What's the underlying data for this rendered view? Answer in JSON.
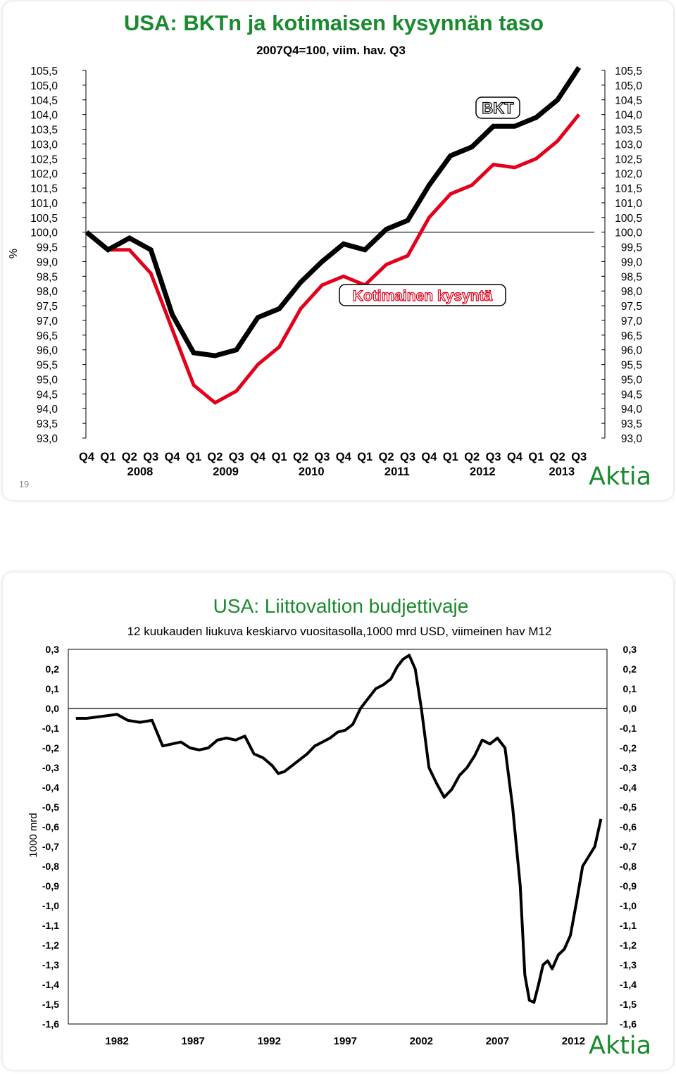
{
  "chart_data": [
    {
      "type": "line",
      "title": "USA: BKTn ja kotimaisen kysynnän taso",
      "subtitle": "2007Q4=100, viim. hav. Q3",
      "ylabel": "%",
      "ylim": [
        93.0,
        105.5
      ],
      "y_ticks": [
        "105,5",
        "105,0",
        "104,5",
        "104,0",
        "103,5",
        "103,0",
        "102,5",
        "102,0",
        "101,5",
        "101,0",
        "100,5",
        "100,0",
        "99,5",
        "99,0",
        "98,5",
        "98,0",
        "97,5",
        "97,0",
        "96,5",
        "96,0",
        "95,5",
        "95,0",
        "94,5",
        "94,0",
        "93,5",
        "93,0"
      ],
      "categories": [
        "Q4",
        "Q1",
        "Q2",
        "Q3",
        "Q4",
        "Q1",
        "Q2",
        "Q3",
        "Q4",
        "Q1",
        "Q2",
        "Q3",
        "Q4",
        "Q1",
        "Q2",
        "Q3",
        "Q4",
        "Q1",
        "Q2",
        "Q3",
        "Q4",
        "Q1",
        "Q2",
        "Q3"
      ],
      "year_labels": [
        {
          "label": "2008",
          "index": 2.5
        },
        {
          "label": "2009",
          "index": 6.5
        },
        {
          "label": "2010",
          "index": 10.5
        },
        {
          "label": "2011",
          "index": 14.5
        },
        {
          "label": "2012",
          "index": 18.5
        },
        {
          "label": "2013",
          "index": 22.2
        }
      ],
      "reference_line": 100.0,
      "series": [
        {
          "name": "BKT",
          "color": "#000000",
          "values": [
            100.0,
            99.4,
            99.8,
            99.4,
            97.2,
            95.9,
            95.8,
            96.0,
            97.1,
            97.4,
            98.3,
            99.0,
            99.6,
            99.4,
            100.1,
            100.4,
            101.6,
            102.6,
            102.9,
            103.6,
            103.6,
            103.9,
            104.5,
            105.6
          ]
        },
        {
          "name": "Kotimainen kysyntä",
          "color": "#e3001b",
          "values": [
            100.0,
            99.4,
            99.4,
            98.6,
            96.7,
            94.8,
            94.2,
            94.6,
            95.5,
            96.1,
            97.4,
            98.2,
            98.5,
            98.2,
            98.9,
            99.2,
            100.5,
            101.3,
            101.6,
            102.3,
            102.2,
            102.5,
            103.1,
            104.0
          ]
        }
      ],
      "page_number": "19",
      "logo": "Aktia"
    },
    {
      "type": "line",
      "title": "USA: Liittovaltion budjettivaje",
      "subtitle": "12 kuukauden liukuva keskiarvo vuositasolla,1000 mrd USD, viimeinen hav M12",
      "ylabel": "1000 mrd",
      "ylim": [
        -1.6,
        0.3
      ],
      "y_ticks": [
        "0,3",
        "0,2",
        "0,1",
        "0,0",
        "-0,1",
        "-0,2",
        "-0,3",
        "-0,4",
        "-0,5",
        "-0,6",
        "-0,7",
        "-0,8",
        "-0,9",
        "-1,0",
        "-1,1",
        "-1,2",
        "-1,3",
        "-1,4",
        "-1,5",
        "-1,6"
      ],
      "xlim": [
        1978.8,
        2014.2
      ],
      "x_ticks": [
        "1982",
        "1987",
        "1992",
        "1997",
        "2002",
        "2007",
        "2012"
      ],
      "reference_line": 0.0,
      "series": [
        {
          "name": "",
          "color": "#000000",
          "x": [
            1979.3,
            1980.0,
            1981.0,
            1982.0,
            1982.7,
            1983.5,
            1984.3,
            1985.0,
            1985.6,
            1986.2,
            1986.8,
            1987.4,
            1988.0,
            1988.6,
            1989.2,
            1989.8,
            1990.4,
            1991.0,
            1991.6,
            1992.2,
            1992.6,
            1993.0,
            1993.5,
            1994.0,
            1994.5,
            1995.0,
            1995.5,
            1996.0,
            1996.5,
            1997.0,
            1997.5,
            1998.0,
            1998.5,
            1999.0,
            1999.5,
            2000.0,
            2000.4,
            2000.8,
            2001.2,
            2001.6,
            2002.0,
            2002.5,
            2003.0,
            2003.5,
            2004.0,
            2004.5,
            2005.0,
            2005.5,
            2006.0,
            2006.5,
            2007.0,
            2007.5,
            2008.0,
            2008.5,
            2008.8,
            2009.1,
            2009.4,
            2009.7,
            2010.0,
            2010.3,
            2010.6,
            2011.0,
            2011.4,
            2011.8,
            2012.2,
            2012.6,
            2013.0,
            2013.4,
            2013.8
          ],
          "values": [
            -0.05,
            -0.05,
            -0.04,
            -0.03,
            -0.06,
            -0.07,
            -0.06,
            -0.19,
            -0.18,
            -0.17,
            -0.2,
            -0.21,
            -0.2,
            -0.16,
            -0.15,
            -0.16,
            -0.14,
            -0.23,
            -0.25,
            -0.29,
            -0.33,
            -0.32,
            -0.29,
            -0.26,
            -0.23,
            -0.19,
            -0.17,
            -0.15,
            -0.12,
            -0.11,
            -0.08,
            0.0,
            0.05,
            0.1,
            0.12,
            0.15,
            0.21,
            0.25,
            0.27,
            0.2,
            0.0,
            -0.3,
            -0.38,
            -0.45,
            -0.41,
            -0.34,
            -0.3,
            -0.24,
            -0.16,
            -0.18,
            -0.15,
            -0.2,
            -0.5,
            -0.9,
            -1.35,
            -1.48,
            -1.49,
            -1.4,
            -1.3,
            -1.28,
            -1.32,
            -1.25,
            -1.22,
            -1.15,
            -0.98,
            -0.8,
            -0.75,
            -0.7,
            -0.56
          ]
        }
      ],
      "logo": "Aktia"
    }
  ]
}
